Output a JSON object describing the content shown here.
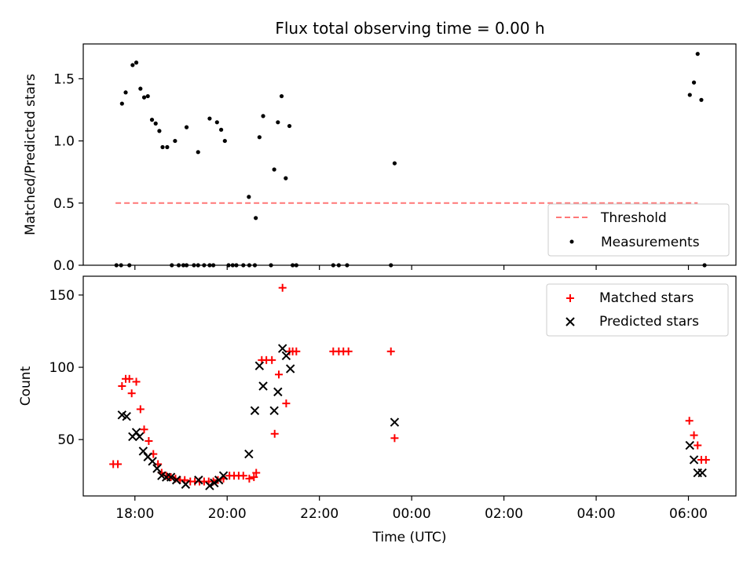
{
  "chart_data": [
    {
      "type": "scatter",
      "title": "Flux total observing time = 0.00 h",
      "xlabel": "",
      "ylabel": "Matched/Predicted stars",
      "xlim": [
        16.88,
        31.03
      ],
      "ylim": [
        0,
        1.78
      ],
      "x_ticks": [
        {
          "x": 18,
          "label": "18:00"
        },
        {
          "x": 20,
          "label": "20:00"
        },
        {
          "x": 22,
          "label": "22:00"
        },
        {
          "x": 24,
          "label": "00:00"
        },
        {
          "x": 26,
          "label": "02:00"
        },
        {
          "x": 28,
          "label": "04:00"
        },
        {
          "x": 30,
          "label": "06:00"
        }
      ],
      "y_ticks": [
        {
          "y": 0.0,
          "label": "0.0"
        },
        {
          "y": 0.5,
          "label": "0.5"
        },
        {
          "y": 1.0,
          "label": "1.0"
        },
        {
          "y": 1.5,
          "label": "1.5"
        }
      ],
      "legend_position": "lower-right",
      "series": [
        {
          "name": "Threshold",
          "kind": "dashed-line",
          "color": "#ff7777",
          "points": [
            [
              17.58,
              0.5
            ],
            [
              30.2,
              0.5
            ]
          ]
        },
        {
          "name": "Measurements",
          "kind": "dot",
          "color": "#000000",
          "points": [
            [
              17.6,
              0.0
            ],
            [
              17.7,
              0.0
            ],
            [
              17.88,
              0.0
            ],
            [
              17.72,
              1.3
            ],
            [
              17.8,
              1.39
            ],
            [
              17.95,
              1.61
            ],
            [
              18.03,
              1.63
            ],
            [
              18.12,
              1.42
            ],
            [
              18.2,
              1.35
            ],
            [
              18.28,
              1.36
            ],
            [
              18.37,
              1.17
            ],
            [
              18.45,
              1.14
            ],
            [
              18.53,
              1.08
            ],
            [
              18.6,
              0.95
            ],
            [
              18.7,
              0.95
            ],
            [
              18.87,
              1.0
            ],
            [
              19.12,
              1.11
            ],
            [
              19.37,
              0.91
            ],
            [
              19.62,
              1.18
            ],
            [
              19.78,
              1.15
            ],
            [
              19.87,
              1.09
            ],
            [
              19.95,
              1.0
            ],
            [
              18.8,
              0.0
            ],
            [
              18.95,
              0.0
            ],
            [
              19.05,
              0.0
            ],
            [
              19.12,
              0.0
            ],
            [
              19.28,
              0.0
            ],
            [
              19.37,
              0.0
            ],
            [
              19.5,
              0.0
            ],
            [
              19.62,
              0.0
            ],
            [
              19.7,
              0.0
            ],
            [
              20.03,
              0.0
            ],
            [
              20.12,
              0.0
            ],
            [
              20.2,
              0.0
            ],
            [
              20.35,
              0.0
            ],
            [
              20.48,
              0.0
            ],
            [
              20.6,
              0.0
            ],
            [
              20.47,
              0.55
            ],
            [
              20.62,
              0.38
            ],
            [
              20.7,
              1.03
            ],
            [
              20.78,
              1.2
            ],
            [
              21.02,
              0.77
            ],
            [
              21.1,
              1.15
            ],
            [
              21.18,
              1.36
            ],
            [
              21.27,
              0.7
            ],
            [
              21.35,
              1.12
            ],
            [
              20.95,
              0.0
            ],
            [
              21.42,
              0.0
            ],
            [
              21.5,
              0.0
            ],
            [
              22.3,
              0.0
            ],
            [
              22.42,
              0.0
            ],
            [
              22.6,
              0.0
            ],
            [
              23.55,
              0.0
            ],
            [
              23.63,
              0.82
            ],
            [
              30.03,
              1.37
            ],
            [
              30.12,
              1.47
            ],
            [
              30.2,
              1.7
            ],
            [
              30.28,
              1.33
            ],
            [
              30.35,
              0.0
            ]
          ]
        }
      ]
    },
    {
      "type": "scatter",
      "title": "",
      "xlabel": "Time (UTC)",
      "ylabel": "Count",
      "xlim": [
        16.88,
        31.03
      ],
      "ylim": [
        11,
        163
      ],
      "x_ticks": [
        {
          "x": 18,
          "label": "18:00"
        },
        {
          "x": 20,
          "label": "20:00"
        },
        {
          "x": 22,
          "label": "22:00"
        },
        {
          "x": 24,
          "label": "00:00"
        },
        {
          "x": 26,
          "label": "02:00"
        },
        {
          "x": 28,
          "label": "04:00"
        },
        {
          "x": 30,
          "label": "06:00"
        }
      ],
      "y_ticks": [
        {
          "y": 50,
          "label": "50"
        },
        {
          "y": 100,
          "label": "100"
        },
        {
          "y": 150,
          "label": "150"
        }
      ],
      "legend_position": "upper-right",
      "series": [
        {
          "name": "Matched stars",
          "kind": "plus",
          "color": "#ff0000",
          "points": [
            [
              17.53,
              33
            ],
            [
              17.63,
              33
            ],
            [
              17.72,
              87
            ],
            [
              17.8,
              92
            ],
            [
              17.88,
              92
            ],
            [
              17.93,
              82
            ],
            [
              18.03,
              90
            ],
            [
              18.12,
              71
            ],
            [
              18.2,
              57
            ],
            [
              18.3,
              49
            ],
            [
              18.4,
              40
            ],
            [
              18.5,
              33
            ],
            [
              18.58,
              27
            ],
            [
              18.68,
              25
            ],
            [
              18.78,
              24
            ],
            [
              18.88,
              23
            ],
            [
              18.98,
              22
            ],
            [
              19.08,
              22
            ],
            [
              19.2,
              21
            ],
            [
              19.3,
              21
            ],
            [
              19.4,
              21
            ],
            [
              19.5,
              21
            ],
            [
              19.6,
              21
            ],
            [
              19.7,
              21
            ],
            [
              19.8,
              22
            ],
            [
              19.92,
              23
            ],
            [
              20.05,
              25
            ],
            [
              20.15,
              25
            ],
            [
              20.25,
              25
            ],
            [
              20.35,
              25
            ],
            [
              20.48,
              23
            ],
            [
              20.58,
              24
            ],
            [
              20.63,
              27
            ],
            [
              20.75,
              105
            ],
            [
              20.85,
              105
            ],
            [
              20.97,
              105
            ],
            [
              21.03,
              54
            ],
            [
              21.12,
              95
            ],
            [
              21.2,
              155
            ],
            [
              21.28,
              75
            ],
            [
              21.35,
              111
            ],
            [
              21.42,
              111
            ],
            [
              21.5,
              111
            ],
            [
              22.3,
              111
            ],
            [
              22.42,
              111
            ],
            [
              22.52,
              111
            ],
            [
              22.63,
              111
            ],
            [
              23.55,
              111
            ],
            [
              23.63,
              51
            ],
            [
              30.02,
              63
            ],
            [
              30.12,
              53
            ],
            [
              30.2,
              46
            ],
            [
              30.28,
              36
            ],
            [
              30.38,
              36
            ]
          ]
        },
        {
          "name": "Predicted stars",
          "kind": "cross",
          "color": "#000000",
          "points": [
            [
              17.72,
              67
            ],
            [
              17.82,
              66
            ],
            [
              17.95,
              52
            ],
            [
              18.03,
              55
            ],
            [
              18.1,
              52
            ],
            [
              18.18,
              42
            ],
            [
              18.28,
              38
            ],
            [
              18.38,
              35
            ],
            [
              18.48,
              30
            ],
            [
              18.58,
              25
            ],
            [
              18.68,
              24
            ],
            [
              18.78,
              24
            ],
            [
              18.9,
              22
            ],
            [
              19.1,
              19
            ],
            [
              19.38,
              22
            ],
            [
              19.62,
              18
            ],
            [
              19.72,
              20
            ],
            [
              19.82,
              22
            ],
            [
              19.92,
              25
            ],
            [
              20.47,
              40
            ],
            [
              20.6,
              70
            ],
            [
              20.7,
              101
            ],
            [
              20.78,
              87
            ],
            [
              21.02,
              70
            ],
            [
              21.1,
              83
            ],
            [
              21.2,
              113
            ],
            [
              21.28,
              108
            ],
            [
              21.37,
              99
            ],
            [
              23.63,
              62
            ],
            [
              30.03,
              46
            ],
            [
              30.12,
              36
            ],
            [
              30.2,
              27
            ],
            [
              30.3,
              27
            ]
          ]
        }
      ]
    }
  ]
}
